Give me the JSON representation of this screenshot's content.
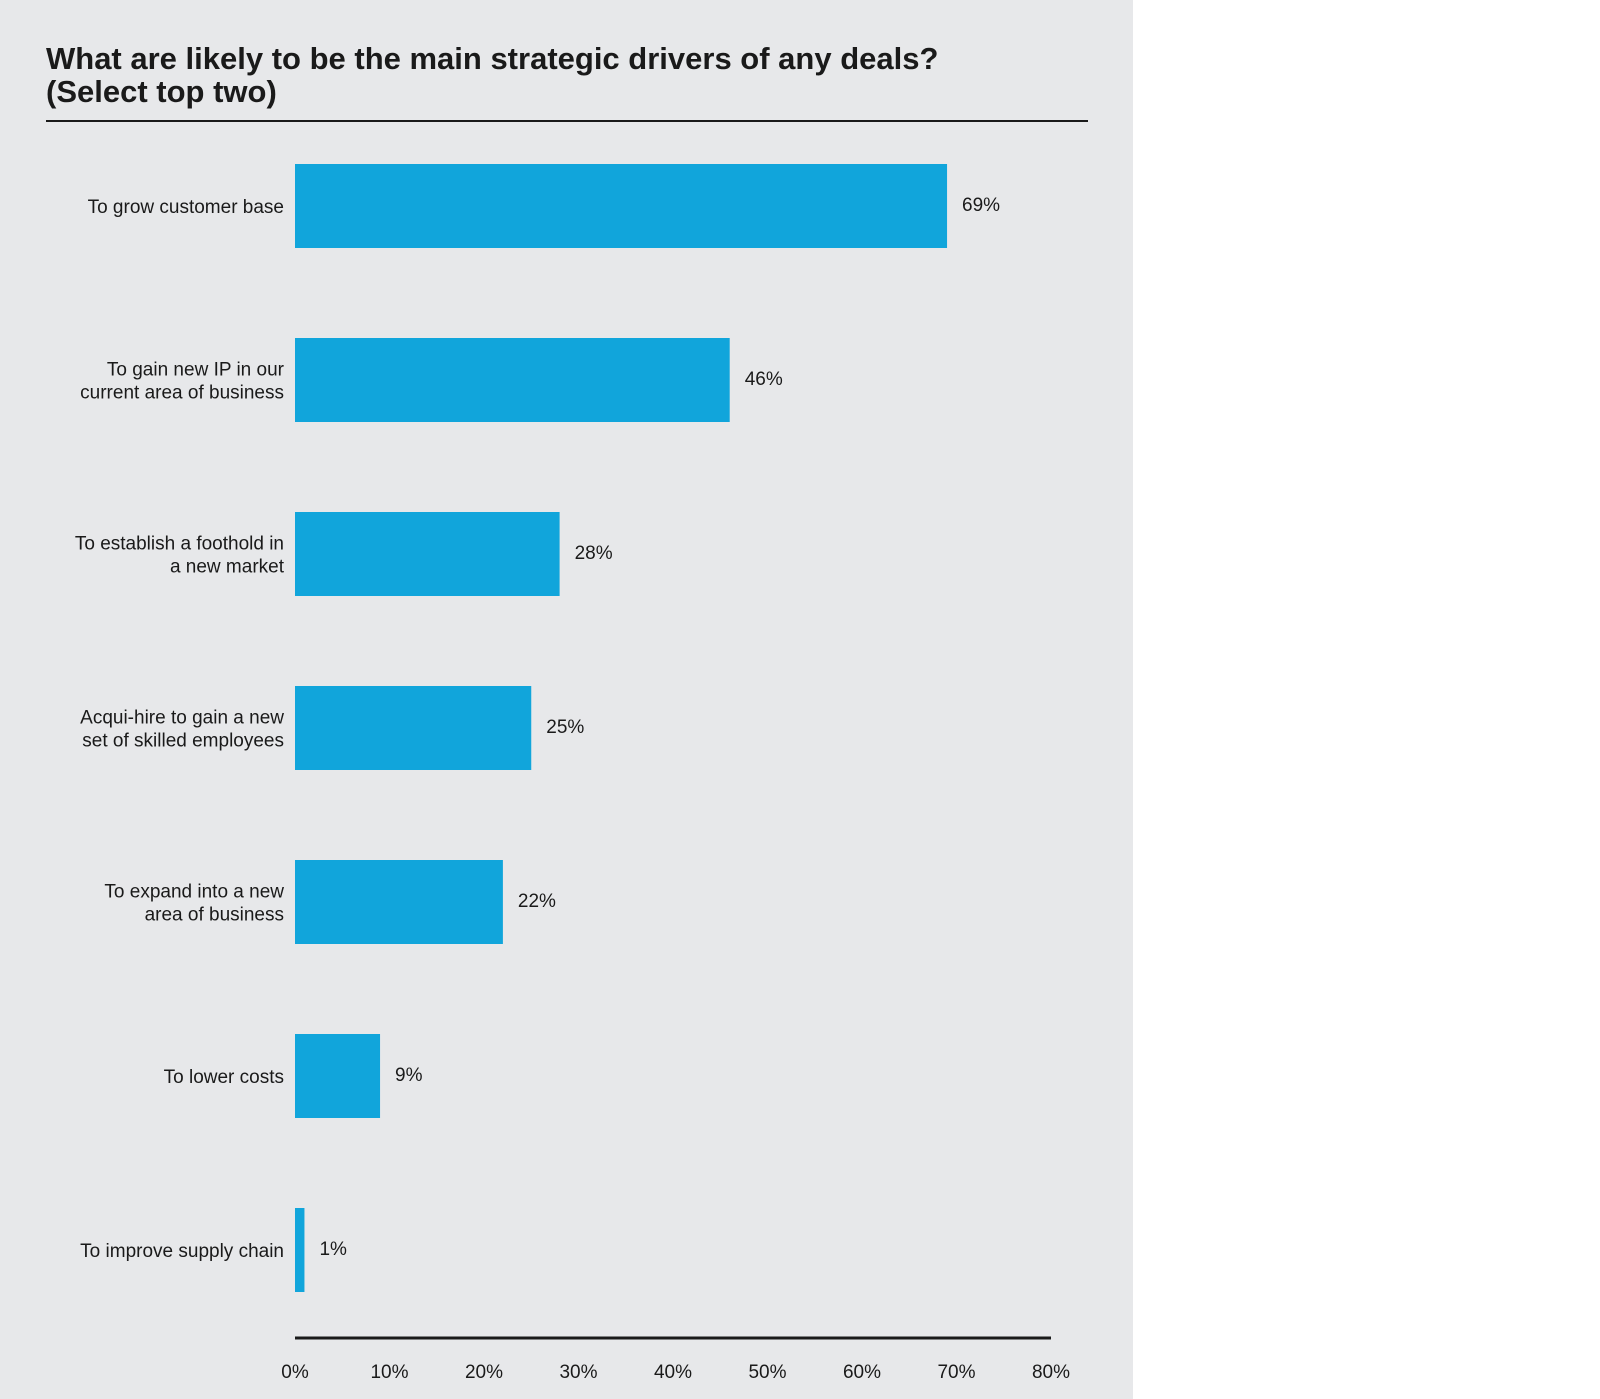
{
  "chart_data": {
    "type": "bar",
    "orientation": "horizontal",
    "title": "What are likely to be the main strategic drivers of any deals? (Select top two)",
    "title_lines": [
      "What are likely to be the main strategic drivers of any deals?",
      "(Select top two)"
    ],
    "categories": [
      [
        "To grow customer base"
      ],
      [
        "To gain new IP in our",
        "current area of business"
      ],
      [
        "To establish a foothold in",
        "a new market"
      ],
      [
        "Acqui-hire to gain a new",
        "set of skilled employees"
      ],
      [
        "To expand into a new",
        "area of business"
      ],
      [
        "To lower costs"
      ],
      [
        "To improve supply chain"
      ]
    ],
    "values": [
      69,
      46,
      28,
      25,
      22,
      9,
      1
    ],
    "value_labels": [
      "69%",
      "46%",
      "28%",
      "25%",
      "22%",
      "9%",
      "1%"
    ],
    "xlim": [
      0,
      80
    ],
    "xticks": [
      0,
      10,
      20,
      30,
      40,
      50,
      60,
      70,
      80
    ],
    "xtick_labels": [
      "0%",
      "10%",
      "20%",
      "30%",
      "40%",
      "50%",
      "60%",
      "70%",
      "80%"
    ],
    "xlabel": "",
    "ylabel": "",
    "grid": false,
    "legend": "none",
    "colors": {
      "bar": "#11a5db",
      "background": "#e7e8ea",
      "text": "#1a1a1a",
      "axis": "#1a1a1a"
    }
  }
}
